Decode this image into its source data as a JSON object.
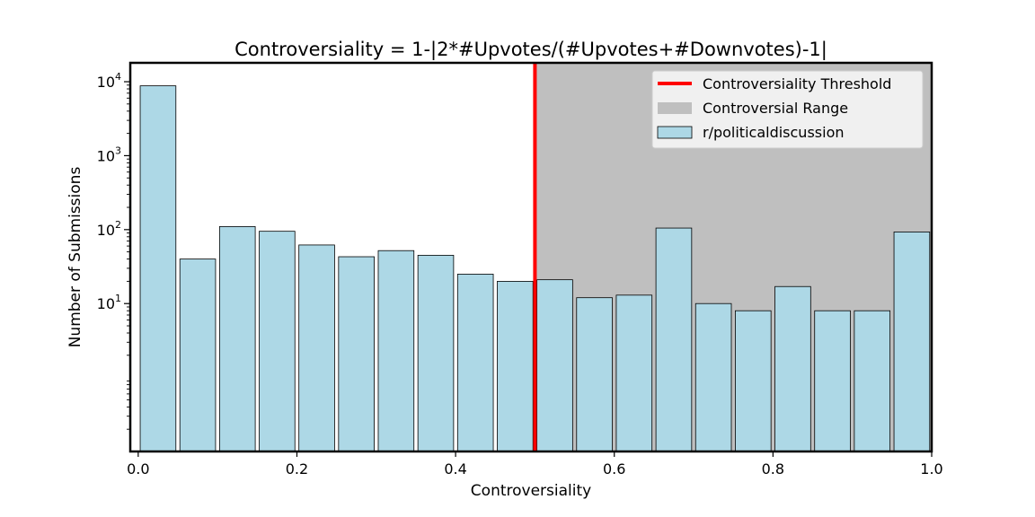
{
  "chart_data": {
    "type": "bar",
    "title": "Controversiality = 1-|2*#Upvotes/(#Upvotes+#Downvotes)-1|",
    "xlabel": "Controversiality",
    "ylabel": "Number of Submissions",
    "xlim": [
      -0.01,
      1.0
    ],
    "ylim_log": [
      0.1,
      18000
    ],
    "yscale": "log",
    "bar_color": "#add8e6",
    "bar_edge_color": "#000000",
    "threshold": 0.5,
    "threshold_color": "#ff0000",
    "range_color": "#bfbfbf",
    "x_ticks": [
      0.0,
      0.2,
      0.4,
      0.6,
      0.8,
      1.0
    ],
    "x_tick_labels": [
      "0.0",
      "0.2",
      "0.4",
      "0.6",
      "0.8",
      "1.0"
    ],
    "y_ticks": [
      {
        "value": 10,
        "base": "10",
        "exp": "1"
      },
      {
        "value": 100,
        "base": "10",
        "exp": "2"
      },
      {
        "value": 1000,
        "base": "10",
        "exp": "3"
      },
      {
        "value": 10000,
        "base": "10",
        "exp": "4"
      }
    ],
    "bins": [
      {
        "x0": 0.0,
        "x1": 0.05,
        "value": 8800
      },
      {
        "x0": 0.05,
        "x1": 0.1,
        "value": 40
      },
      {
        "x0": 0.1,
        "x1": 0.15,
        "value": 110
      },
      {
        "x0": 0.15,
        "x1": 0.2,
        "value": 95
      },
      {
        "x0": 0.2,
        "x1": 0.25,
        "value": 62
      },
      {
        "x0": 0.25,
        "x1": 0.3,
        "value": 43
      },
      {
        "x0": 0.3,
        "x1": 0.35,
        "value": 52
      },
      {
        "x0": 0.35,
        "x1": 0.4,
        "value": 45
      },
      {
        "x0": 0.4,
        "x1": 0.45,
        "value": 25
      },
      {
        "x0": 0.45,
        "x1": 0.5,
        "value": 20
      },
      {
        "x0": 0.5,
        "x1": 0.55,
        "value": 21
      },
      {
        "x0": 0.55,
        "x1": 0.6,
        "value": 12
      },
      {
        "x0": 0.6,
        "x1": 0.65,
        "value": 13
      },
      {
        "x0": 0.65,
        "x1": 0.7,
        "value": 105
      },
      {
        "x0": 0.7,
        "x1": 0.75,
        "value": 10
      },
      {
        "x0": 0.75,
        "x1": 0.8,
        "value": 8
      },
      {
        "x0": 0.8,
        "x1": 0.85,
        "value": 17
      },
      {
        "x0": 0.85,
        "x1": 0.9,
        "value": 8
      },
      {
        "x0": 0.9,
        "x1": 0.95,
        "value": 8
      },
      {
        "x0": 0.95,
        "x1": 1.0,
        "value": 93
      }
    ],
    "legend": {
      "placement": "upper-right",
      "entries": [
        {
          "label": "Controversiality Threshold",
          "kind": "line"
        },
        {
          "label": "Controversial Range",
          "kind": "patch"
        },
        {
          "label": "r/politicaldiscussion",
          "kind": "bar"
        }
      ]
    }
  }
}
